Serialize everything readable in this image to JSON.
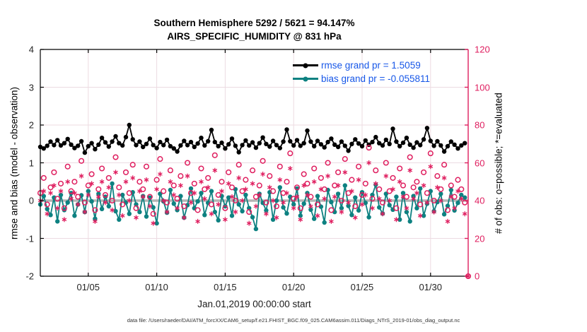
{
  "figure": {
    "title_line1": "Southern Hemisphere 5292 / 5621 = 94.147%",
    "title_line2": "AIRS_SPECIFIC_HUMIDITY @ 831 hPa",
    "footer": "data file: /Users/raeder/DAI/ATM_forcXX/CAM6_setup/f.e21.FHIST_BGC.f09_025.CAM6assim.011/Diags_NTrS_2019-01/obs_diag_output.nc"
  },
  "legend": {
    "text_color": "#1757e8",
    "items": [
      {
        "name": "rmse",
        "label": "rmse grand pr = 1.5059",
        "color": "#000000"
      },
      {
        "name": "bias",
        "label": "bias grand pr = -0.055811",
        "color": "#0d8181"
      }
    ]
  },
  "stats": {
    "obs_evaluated_total": 5292,
    "obs_possible_total": 5621,
    "percent_evaluated": "94.147%",
    "rmse_grand": 1.5059,
    "bias_grand": -0.055811,
    "level": "831 hPa",
    "region": "Southern Hemisphere"
  },
  "chart_data": {
    "type": "line",
    "title": "Southern Hemisphere 5292 / 5621 = 94.147% | AIRS_SPECIFIC_HUMIDITY @ 831 hPa",
    "xlabel": "Jan.01,2019 00:00:00 start",
    "ylabel_left": "rmse and bias (model - observation)",
    "ylabel_right": "# of obs: o=possible; *=evaluated",
    "grid": true,
    "xlim_days": [
      0.5,
      31.75
    ],
    "x_start_day": 0.5,
    "x_step_days": 0.25,
    "n_points": 126,
    "x_tick_days": [
      4,
      9,
      14,
      19,
      24,
      29
    ],
    "x_tick_labels": [
      "01/05",
      "01/10",
      "01/15",
      "01/20",
      "01/25",
      "01/30"
    ],
    "left_ylim": [
      -2,
      4
    ],
    "left_ticks": [
      -2,
      -1,
      0,
      1,
      2,
      3,
      4
    ],
    "right_ylim": [
      0,
      120
    ],
    "right_ticks": [
      0,
      20,
      40,
      60,
      80,
      100,
      120
    ],
    "zero_line": {
      "value": 0,
      "color": "#b5b5b5",
      "width": 3.5
    },
    "colors": {
      "grid": "#ecdbe2",
      "right_axis": "#df1e5f",
      "axis": "#000000"
    },
    "series": [
      {
        "name": "rmse",
        "axis": "left",
        "line": true,
        "marker": "dot",
        "color": "#000000",
        "values": [
          1.42,
          1.38,
          1.45,
          1.56,
          1.47,
          1.6,
          1.46,
          1.52,
          1.63,
          1.48,
          1.39,
          1.45,
          1.57,
          1.27,
          1.44,
          1.52,
          1.36,
          1.48,
          1.66,
          1.54,
          1.43,
          1.56,
          1.7,
          1.52,
          1.46,
          1.68,
          2.0,
          1.62,
          1.47,
          1.56,
          1.42,
          1.5,
          1.64,
          1.47,
          1.39,
          1.55,
          1.47,
          1.61,
          1.44,
          1.38,
          1.3,
          1.46,
          1.58,
          1.47,
          1.55,
          1.42,
          1.51,
          1.66,
          1.46,
          1.57,
          1.87,
          1.55,
          1.44,
          1.53,
          1.38,
          1.49,
          1.64,
          1.45,
          1.28,
          1.47,
          1.59,
          1.46,
          1.54,
          1.4,
          1.52,
          1.67,
          1.5,
          1.43,
          1.58,
          1.47,
          1.39,
          1.56,
          1.88,
          1.57,
          1.46,
          1.6,
          1.45,
          1.52,
          1.85,
          1.56,
          1.44,
          1.58,
          1.49,
          1.41,
          1.55,
          1.64,
          1.48,
          1.42,
          1.56,
          1.45,
          1.32,
          1.5,
          1.62,
          1.51,
          1.44,
          1.59,
          1.48,
          1.55,
          1.68,
          1.52,
          1.46,
          1.61,
          1.5,
          1.9,
          1.56,
          1.44,
          1.53,
          1.66,
          1.48,
          1.4,
          1.54,
          1.47,
          1.62,
          1.92,
          1.58,
          1.45,
          1.57,
          1.46,
          1.3,
          1.44,
          1.56,
          1.48,
          1.38,
          1.46,
          1.52,
          null
        ]
      },
      {
        "name": "bias",
        "axis": "left",
        "line": true,
        "marker": "dot",
        "color": "#0d8181",
        "values": [
          -0.1,
          0.12,
          -0.22,
          -0.38,
          0.08,
          -0.55,
          0.15,
          -0.25,
          -0.05,
          0.2,
          -0.4,
          -0.1,
          0.14,
          -0.3,
          0.25,
          -0.02,
          -0.48,
          0.18,
          -0.22,
          0.1,
          -0.15,
          0.45,
          -0.28,
          -0.5,
          0.15,
          -0.05,
          -0.35,
          0.22,
          -0.1,
          -0.3,
          0.12,
          -0.42,
          0.08,
          -0.18,
          -0.6,
          0.18,
          -0.02,
          -0.32,
          0.28,
          -0.08,
          -0.25,
          0.12,
          -0.45,
          -0.12,
          0.32,
          -0.2,
          -0.02,
          0.2,
          -0.38,
          -0.06,
          0.25,
          -0.3,
          -0.52,
          0.12,
          -0.15,
          0.08,
          -0.4,
          0.3,
          -0.1,
          -0.28,
          0.15,
          -0.2,
          -0.44,
          -0.75,
          0.18,
          -0.06,
          -0.26,
          0.22,
          -0.5,
          0.0,
          0.35,
          -0.18,
          -0.34,
          0.1,
          -0.1,
          0.32,
          -0.4,
          -0.08,
          0.2,
          -0.24,
          -0.48,
          0.12,
          -0.16,
          -0.58,
          0.28,
          -0.04,
          -0.3,
          0.18,
          -0.2,
          0.4,
          -0.14,
          -0.38,
          0.08,
          -0.26,
          0.22,
          -0.06,
          -0.44,
          0.15,
          0.42,
          -0.18,
          -0.34,
          0.18,
          -0.12,
          -0.24,
          0.1,
          -0.5,
          0.2,
          -0.3,
          -0.55,
          0.12,
          -0.2,
          0.32,
          -0.4,
          -0.08,
          0.25,
          -0.28,
          -0.04,
          0.18,
          -0.36,
          -0.14,
          0.28,
          -0.26,
          -0.06,
          0.15,
          0.08,
          null
        ]
      },
      {
        "name": "possible",
        "axis": "right",
        "line": false,
        "marker": "circle",
        "color": "#df1e5f",
        "values": [
          44,
          52,
          38,
          47,
          55,
          41,
          49,
          36,
          58,
          45,
          50,
          42,
          61,
          39,
          48,
          54,
          35,
          46,
          57,
          43,
          52,
          40,
          63,
          47,
          38,
          55,
          44,
          59,
          36,
          50,
          46,
          58,
          42,
          33,
          51,
          62,
          45,
          39,
          56,
          48,
          41,
          53,
          37,
          60,
          44,
          49,
          35,
          57,
          46,
          52,
          38,
          64,
          43,
          50,
          36,
          55,
          47,
          40,
          59,
          45,
          51,
          34,
          56,
          42,
          48,
          61,
          39,
          53,
          45,
          37,
          58,
          44,
          50,
          65,
          41,
          47,
          36,
          54,
          49,
          42,
          57,
          38,
          52,
          46,
          60,
          35,
          48,
          55,
          40,
          62,
          44,
          51,
          37,
          58,
          43,
          49,
          68,
          41,
          56,
          46,
          39,
          60,
          45,
          52,
          36,
          57,
          48,
          42,
          63,
          47,
          50,
          38,
          55,
          44,
          65,
          40,
          53,
          46,
          59,
          35,
          48,
          42,
          51,
          46,
          39,
          0
        ]
      },
      {
        "name": "evaluated",
        "axis": "right",
        "line": false,
        "marker": "asterisk",
        "color": "#df1e5f",
        "values": [
          40,
          45,
          33,
          44,
          48,
          36,
          45,
          30,
          50,
          41,
          44,
          38,
          53,
          34,
          43,
          49,
          29,
          42,
          50,
          39,
          47,
          35,
          55,
          43,
          32,
          50,
          40,
          52,
          31,
          45,
          42,
          51,
          37,
          28,
          46,
          54,
          40,
          34,
          50,
          43,
          36,
          48,
          31,
          53,
          39,
          44,
          29,
          50,
          41,
          47,
          33,
          56,
          38,
          45,
          30,
          49,
          42,
          34,
          52,
          40,
          46,
          28,
          49,
          37,
          43,
          54,
          33,
          47,
          40,
          31,
          51,
          39,
          44,
          57,
          36,
          42,
          30,
          48,
          43,
          37,
          50,
          32,
          46,
          41,
          53,
          29,
          42,
          48,
          34,
          55,
          39,
          45,
          31,
          51,
          38,
          43,
          60,
          36,
          49,
          41,
          33,
          53,
          40,
          46,
          30,
          50,
          42,
          36,
          56,
          41,
          44,
          32,
          48,
          39,
          58,
          34,
          47,
          40,
          52,
          29,
          42,
          36,
          45,
          41,
          33,
          0
        ]
      }
    ]
  }
}
